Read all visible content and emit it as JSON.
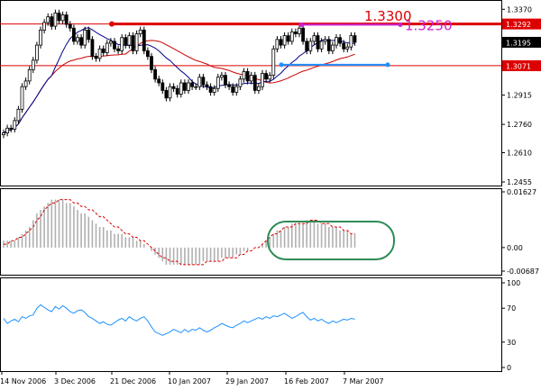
{
  "chart_data": [
    {
      "type": "candlestick",
      "yticks": [
        "1.3370",
        "1.3195",
        "1.3070",
        "1.2915",
        "1.2760",
        "1.2610",
        "1.2455"
      ],
      "ylim": [
        1.2455,
        1.34
      ],
      "levels": [
        {
          "value": 1.3292,
          "label": "1.3292",
          "color": "#dd0000"
        },
        {
          "value": 1.3071,
          "label": "1.3071",
          "color": "#dd0000"
        }
      ],
      "last_price": {
        "value": 1.3195,
        "label": "1.3195"
      },
      "annotations": [
        {
          "text": "1.3300",
          "color": "#dd0000",
          "level": 1.33
        },
        {
          "text": "1.3250",
          "color": "#cc22cc",
          "level": 1.325
        },
        {
          "color": "#1e90ff",
          "level": 1.308
        }
      ],
      "closes": [
        1.2715,
        1.274,
        1.2735,
        1.278,
        1.284,
        1.296,
        1.299,
        1.305,
        1.31,
        1.318,
        1.326,
        1.33,
        1.333,
        1.328,
        1.335,
        1.331,
        1.334,
        1.329,
        1.327,
        1.32,
        1.322,
        1.318,
        1.326,
        1.321,
        1.312,
        1.311,
        1.316,
        1.314,
        1.319,
        1.32,
        1.316,
        1.315,
        1.322,
        1.318,
        1.323,
        1.315,
        1.324,
        1.326,
        1.315,
        1.312,
        1.305,
        1.3,
        1.298,
        1.294,
        1.29,
        1.296,
        1.295,
        1.292,
        1.298,
        1.294,
        1.298,
        1.296,
        1.296,
        1.301,
        1.297,
        1.296,
        1.293,
        1.295,
        1.301,
        1.302,
        1.297,
        1.296,
        1.293,
        1.296,
        1.3,
        1.304,
        1.299,
        1.302,
        1.294,
        1.296,
        1.303,
        1.3,
        1.302,
        1.316,
        1.321,
        1.318,
        1.323,
        1.32,
        1.325,
        1.324,
        1.327,
        1.32,
        1.315,
        1.32,
        1.323,
        1.316,
        1.32,
        1.321,
        1.315,
        1.318,
        1.322,
        1.319,
        1.316,
        1.317,
        1.323,
        1.3195
      ]
    },
    {
      "type": "histogram",
      "yticks": [
        "0.01627",
        "0.00",
        "-0.00687"
      ],
      "ylim": [
        -0.00687,
        0.01627
      ],
      "values": [
        0.002,
        0.002,
        0.002,
        0.002,
        0.003,
        0.004,
        0.005,
        0.006,
        0.008,
        0.01,
        0.011,
        0.012,
        0.013,
        0.014,
        0.014,
        0.014,
        0.014,
        0.013,
        0.013,
        0.012,
        0.011,
        0.01,
        0.01,
        0.009,
        0.008,
        0.007,
        0.006,
        0.006,
        0.005,
        0.005,
        0.004,
        0.004,
        0.004,
        0.003,
        0.003,
        0.003,
        0.002,
        0.002,
        0.001,
        0.0,
        -0.001,
        -0.002,
        -0.003,
        -0.004,
        -0.005,
        -0.005,
        -0.005,
        -0.005,
        -0.005,
        -0.005,
        -0.005,
        -0.005,
        -0.005,
        -0.005,
        -0.004,
        -0.004,
        -0.004,
        -0.004,
        -0.004,
        -0.003,
        -0.003,
        -0.003,
        -0.003,
        -0.002,
        -0.002,
        -0.001,
        -0.001,
        0.0,
        0.0,
        0.0,
        0.001,
        0.002,
        0.003,
        0.004,
        0.005,
        0.005,
        0.006,
        0.006,
        0.007,
        0.007,
        0.007,
        0.007,
        0.008,
        0.008,
        0.008,
        0.007,
        0.007,
        0.007,
        0.006,
        0.006,
        0.006,
        0.005,
        0.005,
        0.005,
        0.004,
        0.004
      ],
      "signal": [
        0.001,
        0.001,
        0.002,
        0.002,
        0.003,
        0.003,
        0.004,
        0.005,
        0.006,
        0.008,
        0.009,
        0.011,
        0.012,
        0.013,
        0.013,
        0.014,
        0.014,
        0.014,
        0.014,
        0.013,
        0.013,
        0.012,
        0.012,
        0.011,
        0.011,
        0.01,
        0.009,
        0.009,
        0.008,
        0.007,
        0.006,
        0.006,
        0.005,
        0.004,
        0.004,
        0.003,
        0.003,
        0.002,
        0.002,
        0.001,
        0.0,
        -0.001,
        -0.002,
        -0.003,
        -0.003,
        -0.004,
        -0.004,
        -0.004,
        -0.005,
        -0.005,
        -0.005,
        -0.005,
        -0.005,
        -0.005,
        -0.005,
        -0.004,
        -0.004,
        -0.004,
        -0.004,
        -0.004,
        -0.003,
        -0.003,
        -0.003,
        -0.003,
        -0.002,
        -0.002,
        -0.001,
        -0.001,
        -0.0,
        0.0,
        0.001,
        0.002,
        0.003,
        0.004,
        0.004,
        0.005,
        0.006,
        0.006,
        0.006,
        0.007,
        0.007,
        0.007,
        0.007,
        0.008,
        0.008,
        0.008,
        0.007,
        0.007,
        0.007,
        0.006,
        0.006,
        0.006,
        0.005,
        0.005,
        0.004,
        0.004
      ]
    },
    {
      "type": "line",
      "yticks": [
        "100",
        "70",
        "30",
        "0"
      ],
      "ylim": [
        0,
        100
      ],
      "values": [
        58,
        52,
        55,
        57,
        54,
        60,
        58,
        61,
        62,
        70,
        74,
        71,
        68,
        66,
        72,
        69,
        73,
        70,
        66,
        64,
        67,
        68,
        65,
        60,
        58,
        55,
        52,
        54,
        51,
        50,
        53,
        56,
        58,
        55,
        60,
        57,
        55,
        58,
        60,
        55,
        48,
        42,
        40,
        38,
        40,
        42,
        45,
        43,
        41,
        45,
        42,
        45,
        44,
        47,
        44,
        42,
        44,
        47,
        49,
        52,
        50,
        48,
        47,
        50,
        52,
        55,
        53,
        55,
        57,
        59,
        57,
        60,
        58,
        61,
        60,
        62,
        64,
        61,
        58,
        60,
        63,
        65,
        60,
        56,
        58,
        55,
        57,
        54,
        52,
        55,
        53,
        55,
        57,
        56,
        58,
        57
      ]
    }
  ],
  "x_labels": [
    "14 Nov 2006",
    "3 Dec 2006",
    "21 Dec 2006",
    "10 Jan 2007",
    "29 Jan 2007",
    "16 Feb 2007",
    "7 Mar 2007"
  ],
  "colors": {
    "candle_up": "#000000",
    "candle_down": "#000000",
    "ma_fast": "#00008b",
    "ma_slow": "#cc0000",
    "rsi": "#1e90ff",
    "highlight_ellipse": "#2e8b57",
    "histogram": "#b0b0b0",
    "signal": "#dd0000"
  }
}
